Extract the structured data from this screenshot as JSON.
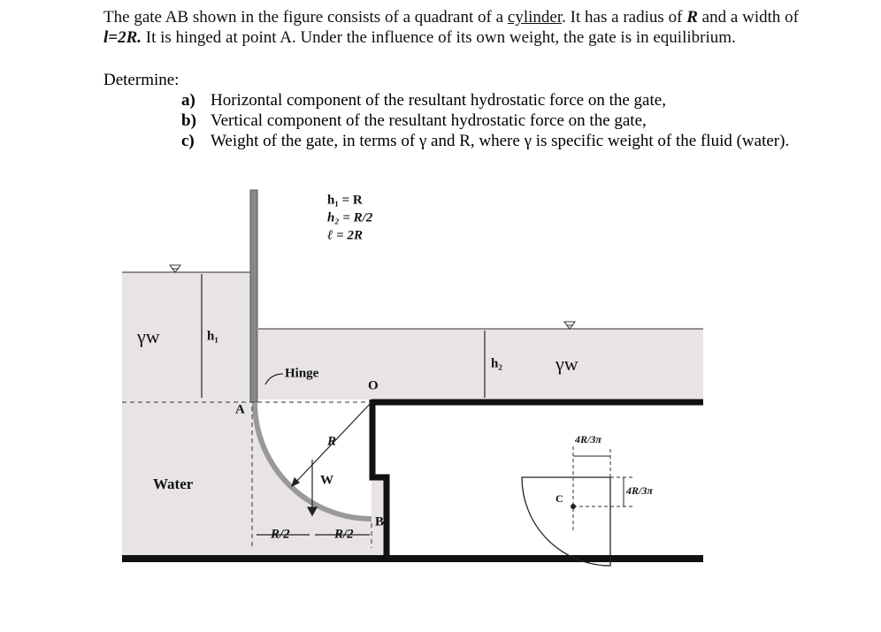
{
  "problem": {
    "runs": [
      "The gate AB shown in the figure consists of a quadrant of a ",
      "cylinder",
      ". It has a radius of ",
      "R",
      " and a width of ",
      "l=2R.",
      " It is hinged at point A. Under the influence of its own weight, the gate is in equilibrium."
    ],
    "determine": "Determine:",
    "items": [
      {
        "label": "a)",
        "text": "Horizontal component of the resultant hydrostatic force on the gate,"
      },
      {
        "label": "b)",
        "text": "Vertical component of the resultant hydrostatic force on the gate,"
      },
      {
        "label": "c)",
        "text": "Weight of the gate, in terms of γ and R, where γ is specific weight of the fluid (water)."
      }
    ]
  },
  "figure": {
    "given": [
      "h₁ = R",
      "h₂ = R/2",
      "ℓ = 2R"
    ],
    "labels": {
      "gamma_left": "γw",
      "h1": "h₁",
      "hinge": "Hinge",
      "o": "O",
      "a": "A",
      "r": "R",
      "w": "W",
      "b": "B",
      "water": "Water",
      "r2_left": "R/2",
      "r2_right": "R/2",
      "gamma_right": "γw",
      "h2": "h₂",
      "centroid_top": "4R/3π",
      "centroid_right": "4R/3π",
      "c": "C"
    }
  }
}
